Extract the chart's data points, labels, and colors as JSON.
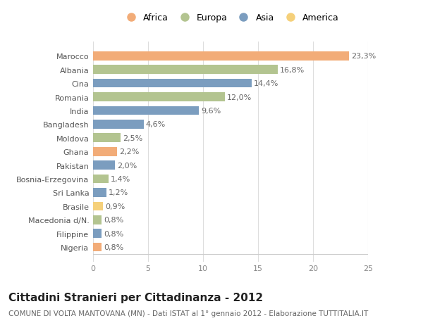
{
  "countries": [
    "Nigeria",
    "Filippine",
    "Macedonia d/N.",
    "Brasile",
    "Sri Lanka",
    "Bosnia-Erzegovina",
    "Pakistan",
    "Ghana",
    "Moldova",
    "Bangladesh",
    "India",
    "Romania",
    "Cina",
    "Albania",
    "Marocco"
  ],
  "values": [
    0.8,
    0.8,
    0.8,
    0.9,
    1.2,
    1.4,
    2.0,
    2.2,
    2.5,
    4.6,
    9.6,
    12.0,
    14.4,
    16.8,
    23.3
  ],
  "labels": [
    "0,8%",
    "0,8%",
    "0,8%",
    "0,9%",
    "1,2%",
    "1,4%",
    "2,0%",
    "2,2%",
    "2,5%",
    "4,6%",
    "9,6%",
    "12,0%",
    "14,4%",
    "16,8%",
    "23,3%"
  ],
  "continents": [
    "Africa",
    "Asia",
    "Europa",
    "America",
    "Asia",
    "Europa",
    "Asia",
    "Africa",
    "Europa",
    "Asia",
    "Asia",
    "Europa",
    "Asia",
    "Europa",
    "Africa"
  ],
  "continent_colors": {
    "Africa": "#F2AC78",
    "Europa": "#B3C490",
    "Asia": "#7B9DBF",
    "America": "#F5D07A"
  },
  "legend_order": [
    "Africa",
    "Europa",
    "Asia",
    "America"
  ],
  "title": "Cittadini Stranieri per Cittadinanza - 2012",
  "subtitle": "COMUNE DI VOLTA MANTOVANA (MN) - Dati ISTAT al 1° gennaio 2012 - Elaborazione TUTTITALIA.IT",
  "xlim": [
    0,
    25
  ],
  "xticks": [
    0,
    5,
    10,
    15,
    20,
    25
  ],
  "background_color": "#FFFFFF",
  "grid_color": "#DDDDDD",
  "bar_height": 0.65,
  "label_fontsize": 8.0,
  "tick_fontsize": 8.0,
  "title_fontsize": 11,
  "subtitle_fontsize": 7.5
}
